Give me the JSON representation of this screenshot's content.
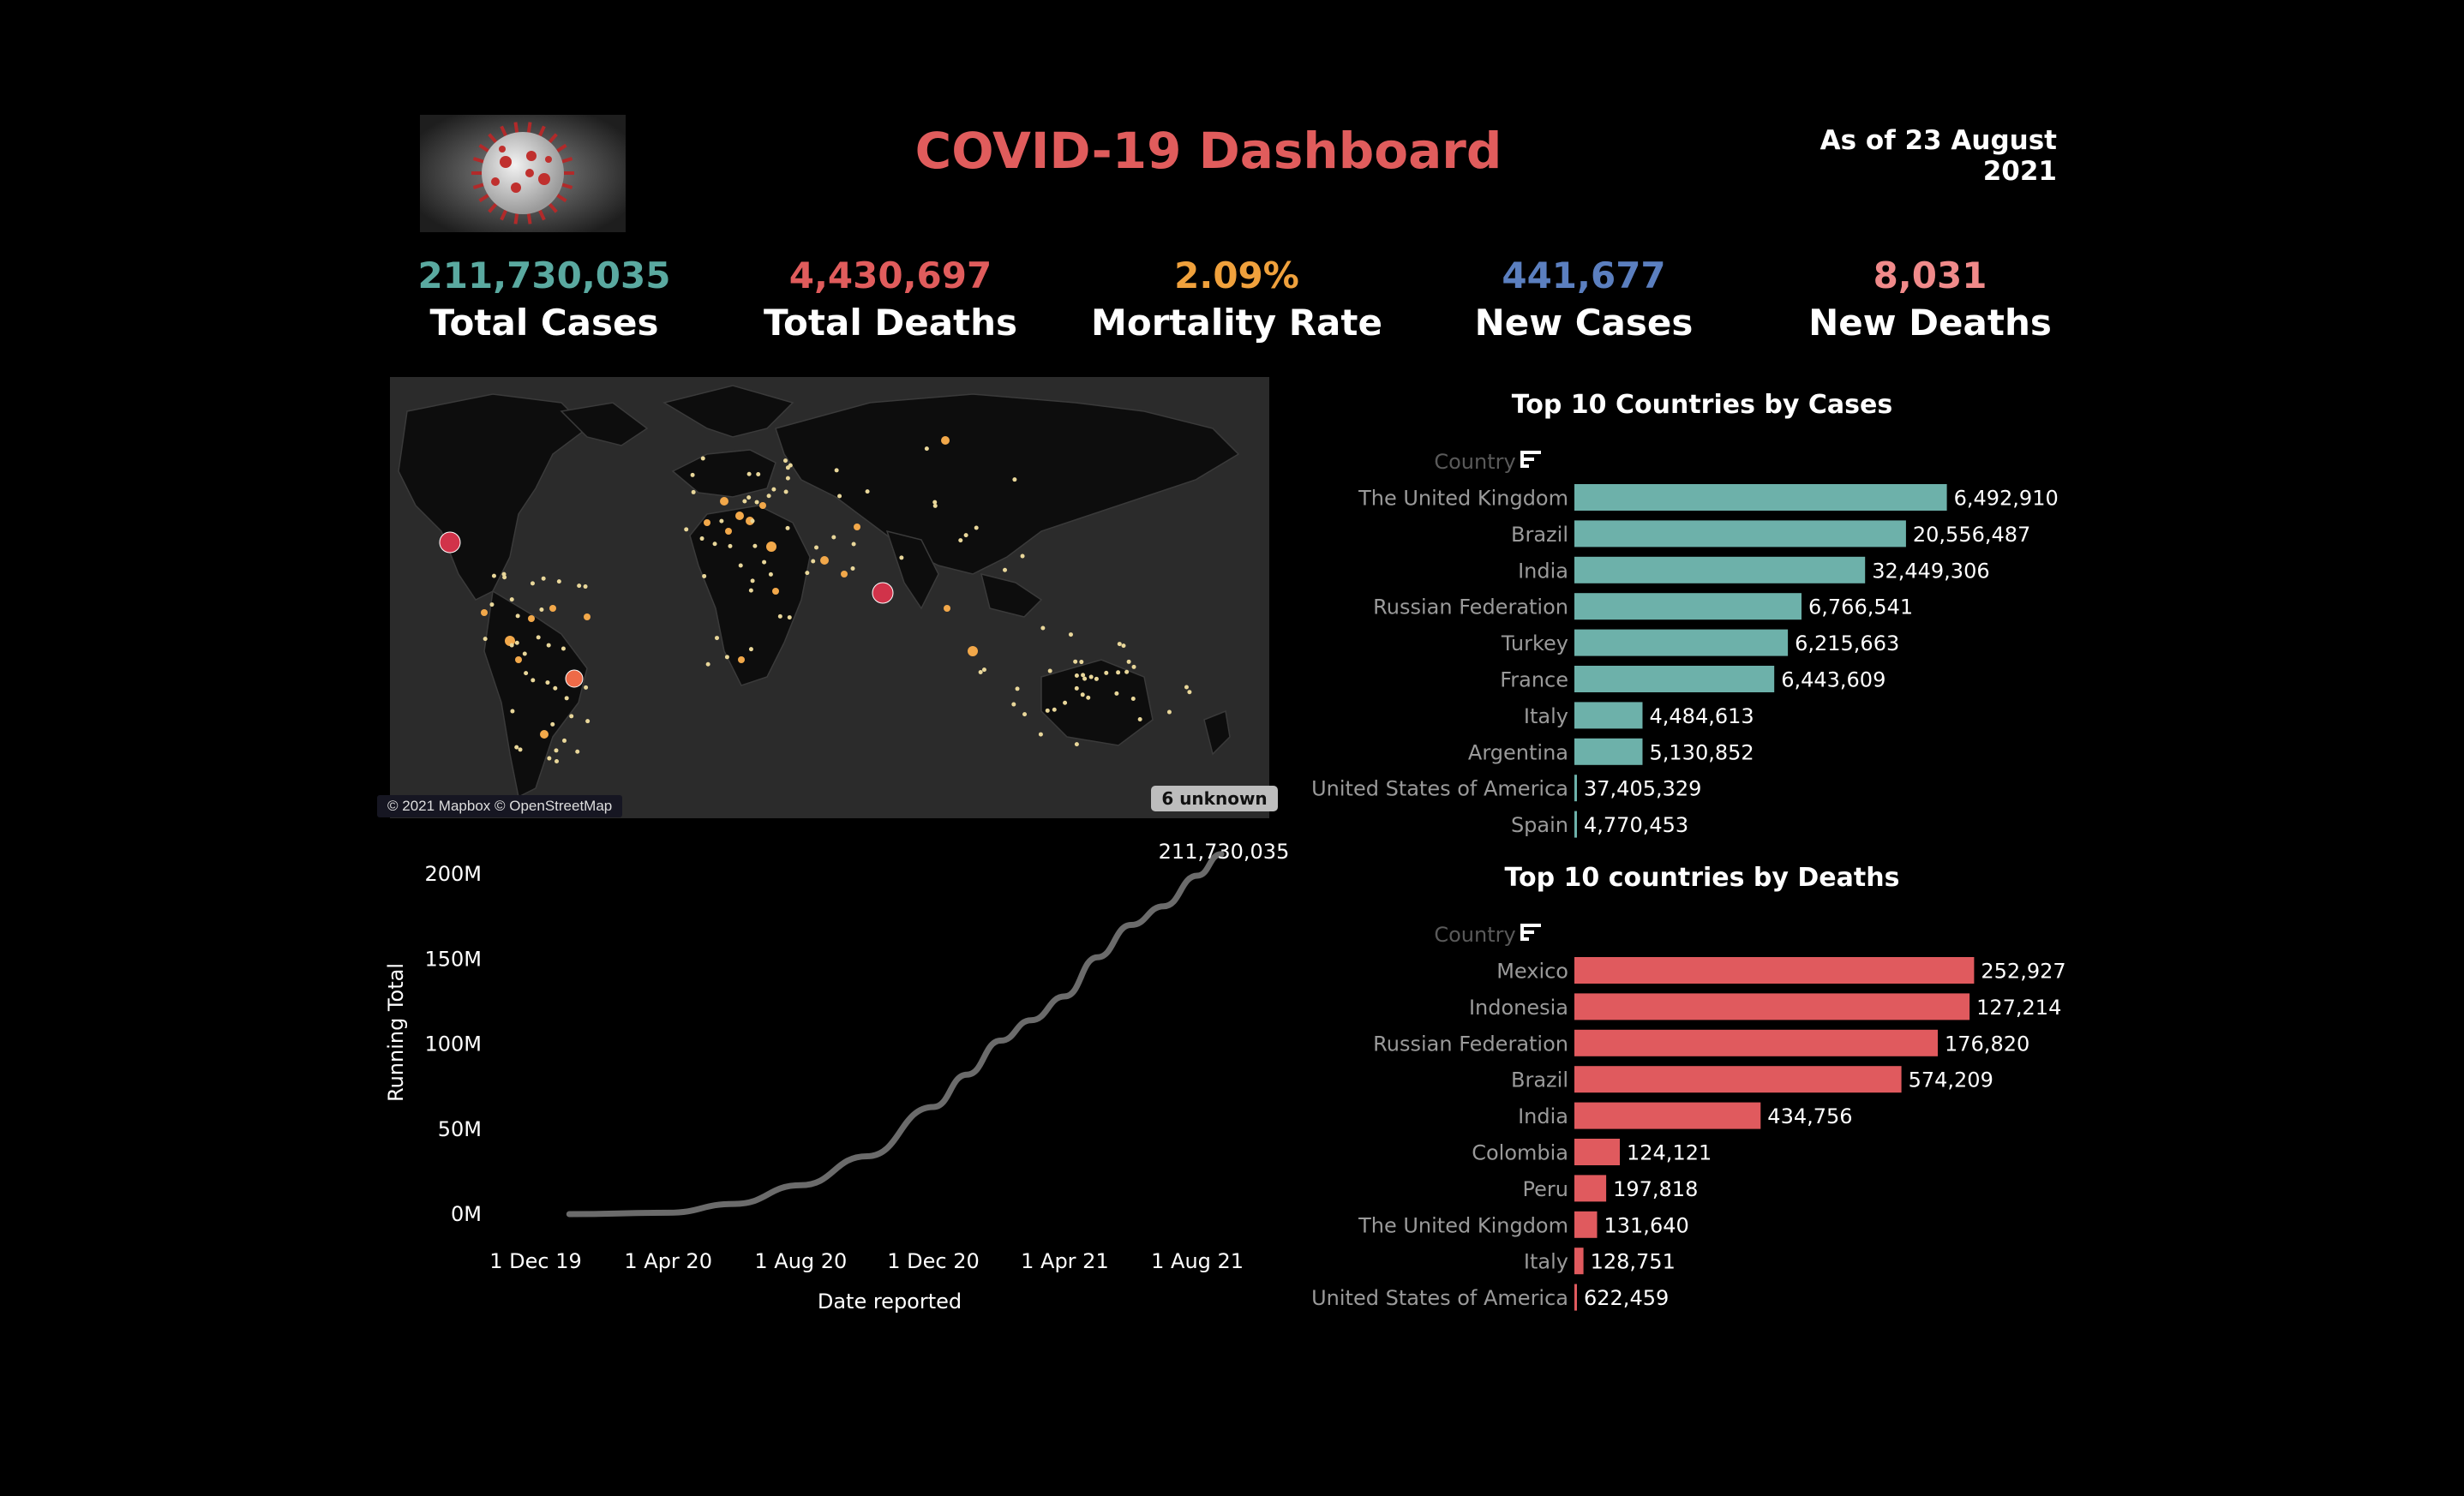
{
  "header": {
    "title": "COVID-19 Dashboard",
    "as_of": "As of 23 August 2021"
  },
  "kpis": [
    {
      "value": "211,730,035",
      "label": "Total Cases",
      "color": "#5aa9a0"
    },
    {
      "value": "4,430,697",
      "label": "Total Deaths",
      "color": "#e05c5c"
    },
    {
      "value": "2.09%",
      "label": "Mortality Rate",
      "color": "#f0a13c"
    },
    {
      "value": "441,677",
      "label": "New Cases",
      "color": "#5b7fbf"
    },
    {
      "value": "8,031",
      "label": "New Deaths",
      "color": "#f08a8a"
    }
  ],
  "map": {
    "attribution": "© 2021 Mapbox © OpenStreetMap",
    "unknown_badge": "6 unknown"
  },
  "chart_data": [
    {
      "type": "line",
      "xlabel": "Date reported",
      "ylabel": "Running Total",
      "x_ticks": [
        "1 Dec 19",
        "1 Apr 20",
        "1 Aug 20",
        "1 Dec 20",
        "1 Apr 21",
        "1 Aug 21"
      ],
      "y_ticks": [
        "0M",
        "50M",
        "100M",
        "150M",
        "200M"
      ],
      "ylim": [
        0,
        200000000
      ],
      "x": [
        "2020-01-01",
        "2020-04-01",
        "2020-06-01",
        "2020-08-01",
        "2020-10-01",
        "2020-12-01",
        "2021-01-01",
        "2021-02-01",
        "2021-03-01",
        "2021-04-01",
        "2021-05-01",
        "2021-06-01",
        "2021-07-01",
        "2021-08-01",
        "2021-08-23"
      ],
      "y": [
        0,
        800000,
        6000000,
        17000000,
        34000000,
        63000000,
        82000000,
        102000000,
        114000000,
        128000000,
        151000000,
        170000000,
        181000000,
        199000000,
        211730035
      ],
      "end_label": "211,730,035",
      "color": "#6b6b6b"
    },
    {
      "type": "bar",
      "title": "Top 10 Countries by Cases",
      "axis_header": "Country",
      "color": "#6db1aa",
      "categories": [
        "The United Kingdom",
        "Brazil",
        "India",
        "Russian Federation",
        "Turkey",
        "France",
        "Italy",
        "Argentina",
        "United States of America",
        "Spain"
      ],
      "values": [
        6492910,
        20556487,
        32449306,
        6766541,
        6215663,
        6443609,
        4484613,
        5130852,
        37405329,
        4770453
      ],
      "labels": [
        "6,492,910",
        "20,556,487",
        "32,449,306",
        "6,766,541",
        "6,215,663",
        "6,443,609",
        "4,484,613",
        "5,130,852",
        "37,405,329",
        "4,770,453"
      ],
      "bar_measure": [
        0.82,
        0.73,
        0.64,
        0.5,
        0.47,
        0.44,
        0.15,
        0.15,
        0.005,
        0.005
      ]
    },
    {
      "type": "bar",
      "title": "Top 10  countries by Deaths",
      "axis_header": "Country",
      "color": "#e05a5e",
      "categories": [
        "Mexico",
        "Indonesia",
        "Russian Federation",
        "Brazil",
        "India",
        "Colombia",
        "Peru",
        "The United Kingdom",
        "Italy",
        "United States of America"
      ],
      "values": [
        252927,
        127214,
        176820,
        574209,
        434756,
        124121,
        197818,
        131640,
        128751,
        622459
      ],
      "labels": [
        "252,927",
        "127,214",
        "176,820",
        "574,209",
        "434,756",
        "124,121",
        "197,818",
        "131,640",
        "128,751",
        "622,459"
      ],
      "bar_measure": [
        0.88,
        0.87,
        0.8,
        0.72,
        0.41,
        0.1,
        0.07,
        0.05,
        0.02,
        0.005
      ]
    }
  ]
}
